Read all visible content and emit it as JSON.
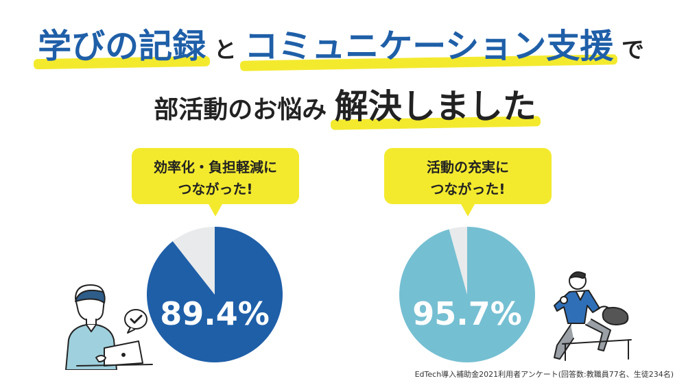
{
  "headline": {
    "line1": [
      {
        "text": "学びの記録",
        "style": "big-blue"
      },
      {
        "text": "と",
        "style": "small-black"
      },
      {
        "text": "コミュニケーション支援",
        "style": "big-blue"
      },
      {
        "text": "で",
        "style": "small-black"
      }
    ],
    "line2": [
      {
        "text": "部活動のお悩み",
        "style": "small-black"
      },
      {
        "text": "解決しました",
        "style": "big-black"
      }
    ]
  },
  "charts": [
    {
      "caption_line1": "効率化・負担軽減に",
      "caption_line2": "つながった!",
      "value_label": "89.4%"
    },
    {
      "caption_line1": "活動の充実に",
      "caption_line2": "つながった!",
      "value_label": "95.7%"
    }
  ],
  "footnote": "EdTech導入補助金2021利用者アンケート(回答数:教職員77名、生徒234名)",
  "colors": {
    "accent_yellow": "#f3ea2e",
    "blue": "#1f5fa8",
    "light_blue": "#75bfd2",
    "gray": "#e8eaeb"
  },
  "chart_data": [
    {
      "type": "pie",
      "slices": [
        {
          "value": 89.4,
          "color": "#1f5fa8"
        },
        {
          "value": 10.6,
          "color": "#e8eaeb"
        }
      ]
    },
    {
      "type": "pie",
      "slices": [
        {
          "value": 95.7,
          "color": "#75bfd2"
        },
        {
          "value": 4.3,
          "color": "#e8eaeb"
        }
      ]
    }
  ]
}
